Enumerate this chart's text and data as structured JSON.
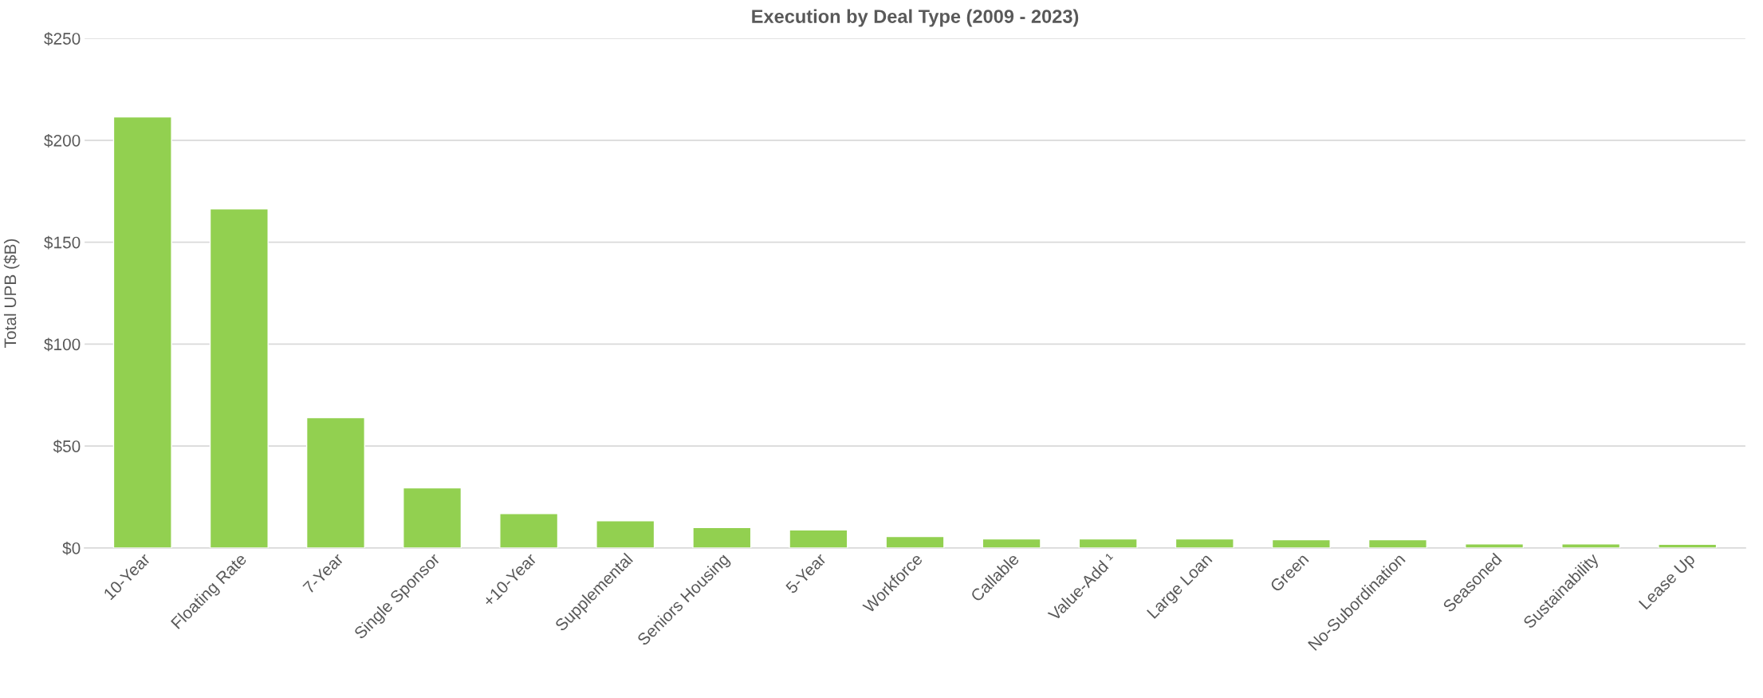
{
  "chart_data": {
    "type": "bar",
    "title": "Execution by Deal Type (2009 - 2023)",
    "ylabel": "Total UPB ($B)",
    "categories": [
      "10-Year",
      "Floating Rate",
      "7-Year",
      "Single Sponsor",
      "+10-Year",
      "Supplemental",
      "Seniors Housing",
      "5-Year",
      "Workforce",
      "Callable",
      "Value-Add ¹",
      "Large Loan",
      "Green",
      "No-Subordination",
      "Seasoned",
      "Sustainability",
      "Lease Up"
    ],
    "values": [
      211.5,
      166.4,
      63.9,
      29.5,
      16.9,
      13.3,
      10,
      8.8,
      5.6,
      4.4,
      4.4,
      4.4,
      4.0,
      4.0,
      2.0,
      2.0,
      1.8
    ],
    "color": "#92d050",
    "ylim": [
      0,
      250
    ],
    "yticks": [
      {
        "value": 0,
        "label": "$0"
      },
      {
        "value": 50,
        "label": "$50"
      },
      {
        "value": 100,
        "label": "$100"
      },
      {
        "value": 150,
        "label": "$150"
      },
      {
        "value": 200,
        "label": "$200"
      },
      {
        "value": 250,
        "label": "$250"
      }
    ],
    "grid": "y",
    "legend": false
  }
}
